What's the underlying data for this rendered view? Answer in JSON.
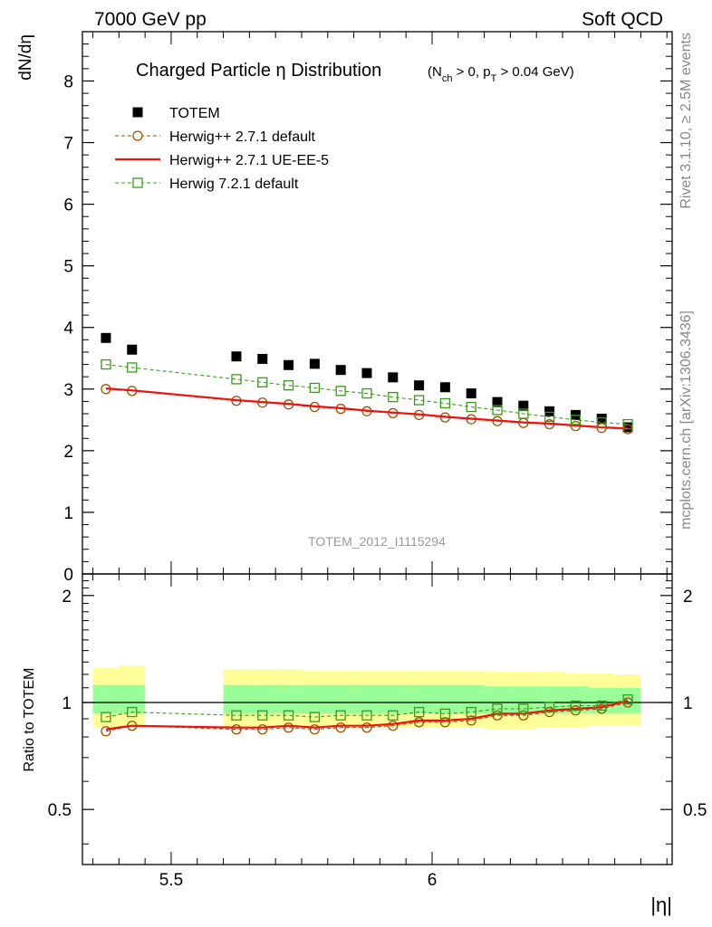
{
  "header": {
    "left": "7000 GeV pp",
    "right": "Soft QCD"
  },
  "side_text": {
    "rivet": "Rivet 3.1.10, ≥ 2.5M events",
    "mcplots": "mcplots.cern.ch [arXiv:1306.3436]"
  },
  "chart_data": [
    {
      "type": "scatter",
      "panel": "main",
      "title": "Charged Particle η Distribution",
      "subtitle": "(N_ch > 0, p_T > 0.04 GeV)",
      "subtitle_parts": {
        "a": "(N",
        "a_sub": "ch",
        "b": " > 0, p",
        "b_sub": "T",
        "c": " > 0.04 GeV)"
      },
      "ylabel": "dN/dη",
      "xlabel": "|η|",
      "watermark": "TOTEM_2012_I1115294",
      "xlim": [
        5.33,
        6.46
      ],
      "ylim": [
        0,
        8.8
      ],
      "yticks": [
        0,
        1,
        2,
        3,
        4,
        5,
        6,
        7,
        8
      ],
      "yticklabels": [
        "0",
        "1",
        "2",
        "3",
        "4",
        "5",
        "6",
        "7",
        "8"
      ],
      "legend_position": "top-left",
      "series": [
        {
          "name": "TOTEM",
          "style": "data",
          "color": "#000000",
          "x": [
            5.375,
            5.425,
            5.625,
            5.675,
            5.725,
            5.775,
            5.825,
            5.875,
            5.925,
            5.975,
            6.025,
            6.075,
            6.125,
            6.175,
            6.225,
            6.275,
            6.325,
            6.375
          ],
          "y": [
            3.83,
            3.64,
            3.53,
            3.49,
            3.39,
            3.41,
            3.31,
            3.26,
            3.19,
            3.06,
            3.03,
            2.93,
            2.79,
            2.73,
            2.64,
            2.58,
            2.52,
            2.38
          ]
        },
        {
          "name": "Herwig++ 2.7.1 default",
          "style": "circle-dashed",
          "color": "#a05000",
          "x": [
            5.375,
            5.425,
            5.625,
            5.675,
            5.725,
            5.775,
            5.825,
            5.875,
            5.925,
            5.975,
            6.025,
            6.075,
            6.125,
            6.175,
            6.225,
            6.275,
            6.325,
            6.375
          ],
          "y": [
            3.0,
            2.97,
            2.81,
            2.78,
            2.75,
            2.71,
            2.68,
            2.64,
            2.61,
            2.58,
            2.54,
            2.51,
            2.48,
            2.45,
            2.43,
            2.4,
            2.37,
            2.35
          ]
        },
        {
          "name": "Herwig++ 2.7.1 UE-EE-5",
          "style": "solid",
          "color": "#ee1111",
          "x": [
            5.375,
            5.425,
            5.625,
            5.675,
            5.725,
            5.775,
            5.825,
            5.875,
            5.925,
            5.975,
            6.025,
            6.075,
            6.125,
            6.175,
            6.225,
            6.275,
            6.325,
            6.375
          ],
          "y": [
            3.01,
            2.98,
            2.82,
            2.79,
            2.76,
            2.72,
            2.69,
            2.65,
            2.62,
            2.59,
            2.55,
            2.52,
            2.49,
            2.46,
            2.44,
            2.41,
            2.38,
            2.36
          ]
        },
        {
          "name": "Herwig 7.2.1 default",
          "style": "square-dashed",
          "color": "#3a9a1a",
          "x": [
            5.375,
            5.425,
            5.625,
            5.675,
            5.725,
            5.775,
            5.825,
            5.875,
            5.925,
            5.975,
            6.025,
            6.075,
            6.125,
            6.175,
            6.225,
            6.275,
            6.325,
            6.375
          ],
          "y": [
            3.4,
            3.35,
            3.16,
            3.11,
            3.06,
            3.02,
            2.97,
            2.93,
            2.87,
            2.82,
            2.77,
            2.71,
            2.66,
            2.6,
            2.55,
            2.5,
            2.46,
            2.43
          ]
        }
      ]
    },
    {
      "type": "line",
      "panel": "ratio",
      "ylabel": "Ratio to TOTEM",
      "xlabel": "|η|",
      "xlim": [
        5.33,
        6.46
      ],
      "ylim": [
        0.35,
        2.3
      ],
      "log_y": true,
      "yticks": [
        0.5,
        1,
        2
      ],
      "yticklabels": [
        "0.5",
        "1",
        "2"
      ],
      "xticks": [
        5.5,
        6
      ],
      "xticklabels": [
        "5.5",
        "6"
      ],
      "bands": {
        "x_low": [
          5.35,
          5.4,
          5.6,
          5.65,
          5.7,
          5.75,
          5.8,
          5.85,
          5.9,
          5.95,
          6.0,
          6.05,
          6.1,
          6.15,
          6.2,
          6.25,
          6.3,
          6.35
        ],
        "x_high": [
          5.4,
          5.45,
          5.65,
          5.7,
          5.75,
          5.8,
          5.85,
          5.9,
          5.95,
          6.0,
          6.05,
          6.1,
          6.15,
          6.2,
          6.25,
          6.3,
          6.35,
          6.4
        ],
        "yellow_low": [
          0.85,
          0.85,
          0.85,
          0.85,
          0.85,
          0.85,
          0.85,
          0.85,
          0.85,
          0.85,
          0.85,
          0.85,
          0.84,
          0.84,
          0.85,
          0.85,
          0.86,
          0.86
        ],
        "yellow_high": [
          1.25,
          1.27,
          1.24,
          1.24,
          1.24,
          1.23,
          1.23,
          1.23,
          1.23,
          1.23,
          1.23,
          1.23,
          1.22,
          1.22,
          1.22,
          1.21,
          1.21,
          1.2
        ],
        "green_low": [
          0.93,
          0.93,
          0.93,
          0.93,
          0.93,
          0.93,
          0.93,
          0.93,
          0.93,
          0.93,
          0.93,
          0.93,
          0.93,
          0.93,
          0.93,
          0.93,
          0.93,
          0.93
        ],
        "green_high": [
          1.12,
          1.12,
          1.12,
          1.12,
          1.12,
          1.12,
          1.12,
          1.12,
          1.12,
          1.12,
          1.12,
          1.12,
          1.11,
          1.11,
          1.11,
          1.11,
          1.1,
          1.1
        ],
        "yellow_color": "#ffff99",
        "green_color": "#99ff99"
      },
      "series": [
        {
          "name": "Herwig++ 2.7.1 default",
          "style": "circle-dashed",
          "color": "#a05000",
          "x": [
            5.375,
            5.425,
            5.625,
            5.675,
            5.725,
            5.775,
            5.825,
            5.875,
            5.925,
            5.975,
            6.025,
            6.075,
            6.125,
            6.175,
            6.225,
            6.275,
            6.325,
            6.375
          ],
          "y": [
            0.83,
            0.86,
            0.84,
            0.84,
            0.85,
            0.84,
            0.85,
            0.85,
            0.86,
            0.88,
            0.88,
            0.89,
            0.92,
            0.92,
            0.94,
            0.95,
            0.96,
            1.0
          ]
        },
        {
          "name": "Herwig++ 2.7.1 UE-EE-5",
          "style": "solid",
          "color": "#ee1111",
          "x": [
            5.375,
            5.425,
            5.625,
            5.675,
            5.725,
            5.775,
            5.825,
            5.875,
            5.925,
            5.975,
            6.025,
            6.075,
            6.125,
            6.175,
            6.225,
            6.275,
            6.325,
            6.375
          ],
          "y": [
            0.84,
            0.86,
            0.85,
            0.85,
            0.86,
            0.85,
            0.86,
            0.86,
            0.87,
            0.89,
            0.89,
            0.9,
            0.93,
            0.93,
            0.95,
            0.96,
            0.97,
            1.01
          ]
        },
        {
          "name": "Herwig 7.2.1 default",
          "style": "square-dashed",
          "color": "#3a9a1a",
          "x": [
            5.375,
            5.425,
            5.625,
            5.675,
            5.725,
            5.775,
            5.825,
            5.875,
            5.925,
            5.975,
            6.025,
            6.075,
            6.125,
            6.175,
            6.225,
            6.275,
            6.325,
            6.375
          ],
          "y": [
            0.91,
            0.94,
            0.92,
            0.92,
            0.92,
            0.91,
            0.92,
            0.92,
            0.92,
            0.94,
            0.93,
            0.94,
            0.96,
            0.96,
            0.97,
            0.98,
            0.98,
            1.02
          ]
        }
      ]
    }
  ]
}
